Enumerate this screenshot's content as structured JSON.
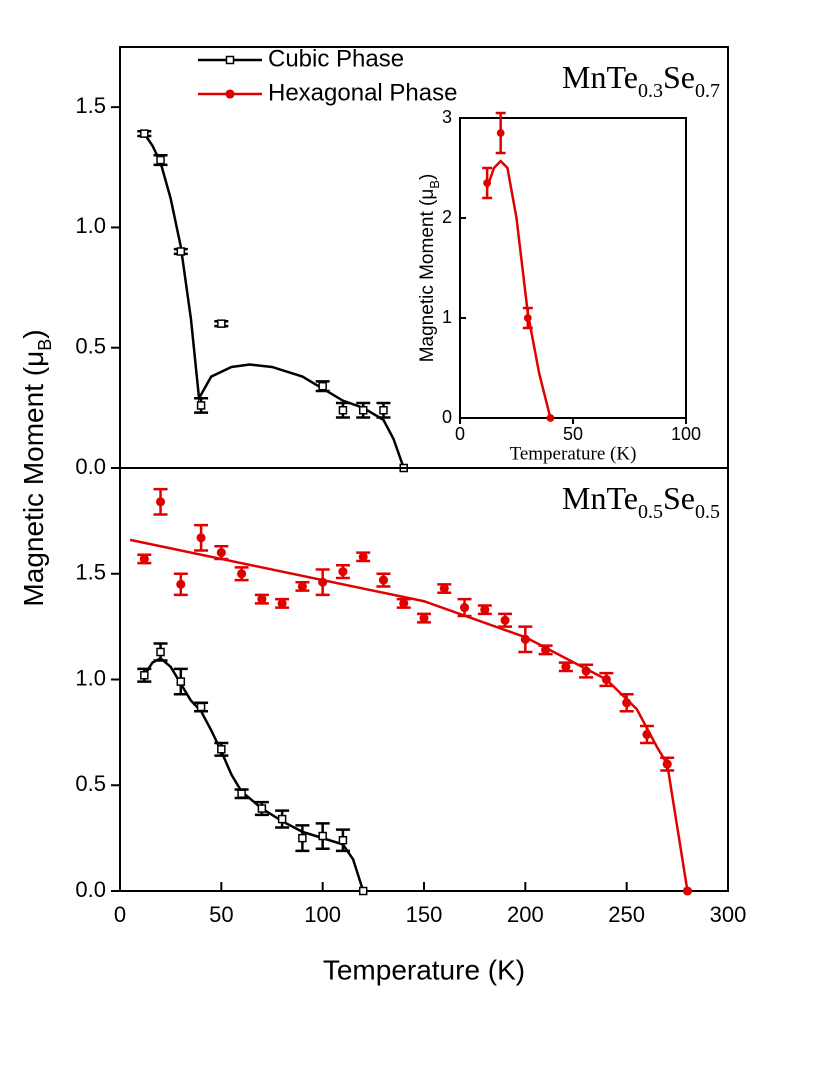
{
  "chart_data": [
    {
      "type": "line",
      "xlim": [
        0,
        300
      ],
      "ylim": [
        0,
        1.75
      ],
      "yticks": [
        {
          "value": 0,
          "label": "0.0"
        },
        {
          "value": 0.5,
          "label": "0.5"
        },
        {
          "value": 1,
          "label": "1.0"
        },
        {
          "value": 1.5,
          "label": "1.5"
        }
      ],
      "annotation": [
        "MnTe",
        "0.3",
        "Se",
        "0.7"
      ],
      "legend": [
        {
          "name": "Cubic Phase",
          "color": "#000000",
          "marker": "open-square"
        },
        {
          "name": "Hexagonal Phase",
          "color": "#e00000",
          "marker": "circle"
        }
      ],
      "series": [
        {
          "color": "#000000",
          "marker": "open-square",
          "x": [
            12,
            20,
            30,
            40,
            50,
            100,
            110,
            120,
            130,
            140
          ],
          "values": [
            1.39,
            1.28,
            0.9,
            0.26,
            0.6,
            0.34,
            0.24,
            0.24,
            0.24,
            0
          ],
          "errors": [
            0.01,
            0.02,
            0.01,
            0.03,
            0.01,
            0.02,
            0.03,
            0.03,
            0.03,
            null
          ],
          "fit_x": [
            12,
            16,
            20,
            25,
            30,
            35,
            39,
            45,
            55,
            64,
            75,
            90,
            100,
            110,
            120,
            130,
            135,
            140
          ],
          "fit_values": [
            1.39,
            1.34,
            1.27,
            1.12,
            0.92,
            0.62,
            0.29,
            0.38,
            0.42,
            0.43,
            0.42,
            0.38,
            0.33,
            0.28,
            0.25,
            0.2,
            0.12,
            0
          ]
        }
      ]
    },
    {
      "type": "line",
      "xlim": [
        0,
        300
      ],
      "xticks": [
        0,
        50,
        100,
        150,
        200,
        250,
        300
      ],
      "ylim": [
        0,
        2
      ],
      "yticks": [
        {
          "value": 0,
          "label": "0.0"
        },
        {
          "value": 0.5,
          "label": "0.5"
        },
        {
          "value": 1,
          "label": "1.0"
        },
        {
          "value": 1.5,
          "label": "1.5"
        }
      ],
      "x_label": "Temperature (K)",
      "y_label": [
        "Magnetic Moment (μ",
        "B",
        ")"
      ],
      "annotation": [
        "MnTe",
        "0.5",
        "Se",
        "0.5"
      ],
      "series": [
        {
          "color": "#e00000",
          "marker": "circle",
          "x": [
            12,
            20,
            30,
            40,
            50,
            60,
            70,
            80,
            90,
            100,
            110,
            120,
            130,
            140,
            150,
            160,
            170,
            180,
            190,
            200,
            210,
            220,
            230,
            240,
            250,
            260,
            270,
            280
          ],
          "values": [
            1.57,
            1.84,
            1.45,
            1.67,
            1.6,
            1.5,
            1.38,
            1.36,
            1.44,
            1.46,
            1.51,
            1.58,
            1.47,
            1.36,
            1.29,
            1.43,
            1.34,
            1.33,
            1.28,
            1.19,
            1.14,
            1.06,
            1.04,
            1.0,
            0.89,
            0.74,
            0.6,
            0
          ],
          "errors": [
            0.02,
            0.06,
            0.05,
            0.06,
            0.03,
            0.03,
            0.02,
            0.02,
            0.02,
            0.06,
            0.03,
            0.02,
            0.03,
            0.02,
            0.02,
            0.02,
            0.04,
            0.02,
            0.03,
            0.06,
            0.02,
            0.02,
            0.03,
            0.03,
            0.04,
            0.04,
            0.03,
            null
          ],
          "fit_x": [
            5,
            150,
            200,
            240,
            255,
            265,
            270,
            280
          ],
          "fit_values": [
            1.66,
            1.37,
            1.2,
            1.0,
            0.86,
            0.68,
            0.6,
            0
          ]
        },
        {
          "color": "#000000",
          "marker": "open-square",
          "x": [
            12,
            20,
            30,
            40,
            50,
            60,
            70,
            80,
            90,
            100,
            110,
            120
          ],
          "values": [
            1.02,
            1.13,
            0.99,
            0.87,
            0.67,
            0.46,
            0.39,
            0.34,
            0.25,
            0.26,
            0.24,
            0
          ],
          "errors": [
            0.03,
            0.04,
            0.06,
            0.02,
            0.03,
            0.02,
            0.03,
            0.04,
            0.06,
            0.06,
            0.05,
            null
          ],
          "fit_x": [
            12,
            16,
            20,
            25,
            30,
            35,
            40,
            45,
            50,
            55,
            60,
            70,
            80,
            90,
            100,
            110,
            115,
            120
          ],
          "fit_values": [
            1.02,
            1.08,
            1.1,
            1.06,
            0.98,
            0.9,
            0.85,
            0.76,
            0.66,
            0.55,
            0.47,
            0.39,
            0.33,
            0.28,
            0.25,
            0.22,
            0.15,
            0
          ]
        }
      ]
    },
    {
      "type": "line",
      "xlim": [
        0,
        100
      ],
      "xticks": [
        0,
        50,
        100
      ],
      "ylim": [
        0,
        3
      ],
      "yticks": [
        0,
        1,
        2,
        3
      ],
      "x_label": "Temperature (K)",
      "y_label": [
        "Magnetic Moment (μ",
        "B",
        ")"
      ],
      "series": [
        {
          "color": "#e00000",
          "marker": "circle",
          "x": [
            12,
            18,
            30,
            40
          ],
          "values": [
            2.35,
            2.85,
            1.0,
            0
          ],
          "errors": [
            0.15,
            0.2,
            0.1,
            null
          ],
          "fit_x": [
            12,
            15,
            18,
            21,
            25,
            30,
            35,
            40
          ],
          "fit_values": [
            2.3,
            2.5,
            2.57,
            2.5,
            2.0,
            1.05,
            0.45,
            0
          ]
        }
      ]
    }
  ]
}
